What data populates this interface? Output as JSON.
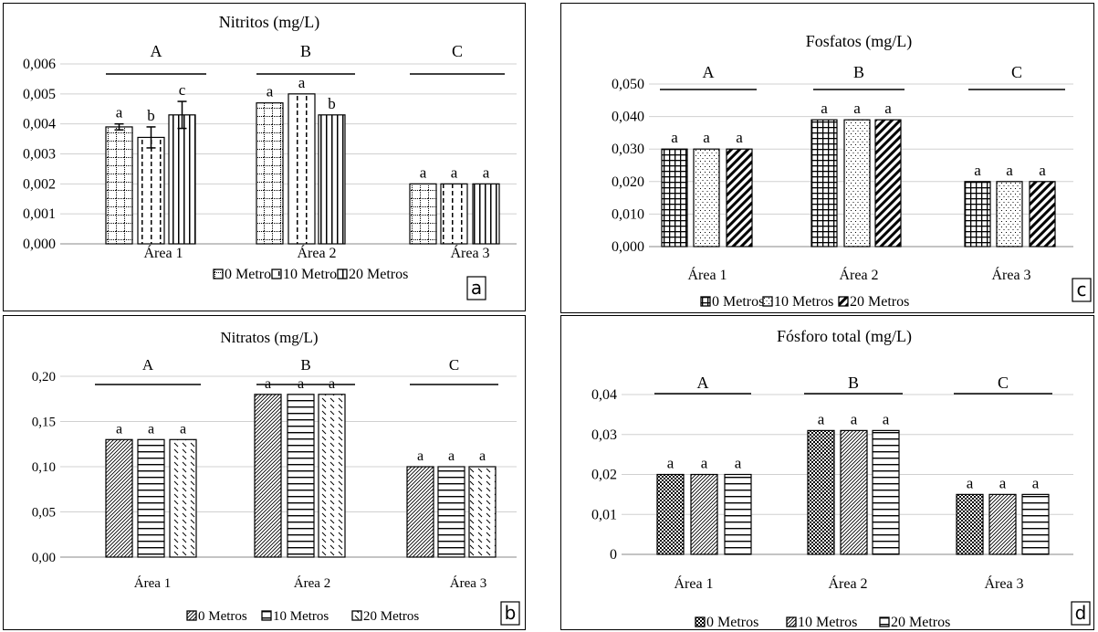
{
  "panels": [
    {
      "id": "a",
      "panel_letter": "a",
      "legend": [
        "0 Metros",
        "10 Metros",
        "20 Metros"
      ],
      "chart_data": {
        "type": "bar",
        "title": "Nitritos (mg/L)",
        "categories": [
          "Área 1",
          "Área 2",
          "Área 3"
        ],
        "group_labels": [
          "A",
          "B",
          "C"
        ],
        "series": [
          {
            "name": "0 Metros",
            "values": [
              0.0039,
              0.0047,
              0.002
            ],
            "errors": [
              0.0001,
              0,
              0
            ],
            "letters": [
              "a",
              "a",
              "a"
            ]
          },
          {
            "name": "10 Metros",
            "values": [
              0.00355,
              0.005,
              0.002
            ],
            "errors": [
              0.00035,
              0,
              0
            ],
            "letters": [
              "b",
              "a",
              "a"
            ]
          },
          {
            "name": "20 Metros",
            "values": [
              0.0043,
              0.0043,
              0.002
            ],
            "errors": [
              0.00045,
              0,
              0
            ],
            "letters": [
              "c",
              "b",
              "a"
            ]
          }
        ],
        "yticks": [
          "0,000",
          "0,001",
          "0,002",
          "0,003",
          "0,004",
          "0,005",
          "0,006"
        ],
        "ylim": [
          0,
          0.006
        ],
        "grid": true,
        "legend_position": "bottom"
      }
    },
    {
      "id": "c",
      "panel_letter": "c",
      "legend": [
        "0 Metros",
        "10 Metros",
        "20 Metros"
      ],
      "chart_data": {
        "type": "bar",
        "title": "Fosfatos (mg/L)",
        "categories": [
          "Área 1",
          "Área 2",
          "Área 3"
        ],
        "group_labels": [
          "A",
          "B",
          "C"
        ],
        "series": [
          {
            "name": "0 Metros",
            "values": [
              0.03,
              0.039,
              0.02
            ],
            "letters": [
              "a",
              "a",
              "a"
            ]
          },
          {
            "name": "10 Metros",
            "values": [
              0.03,
              0.039,
              0.02
            ],
            "letters": [
              "a",
              "a",
              "a"
            ]
          },
          {
            "name": "20 Metros",
            "values": [
              0.03,
              0.039,
              0.02
            ],
            "letters": [
              "a",
              "a",
              "a"
            ]
          }
        ],
        "yticks": [
          "0,000",
          "0,010",
          "0,020",
          "0,030",
          "0,040",
          "0,050"
        ],
        "ylim": [
          0,
          0.05
        ],
        "grid": true,
        "legend_position": "bottom"
      }
    },
    {
      "id": "b",
      "panel_letter": "b",
      "legend": [
        "0 Metros",
        "10 Metros",
        "20 Metros"
      ],
      "chart_data": {
        "type": "bar",
        "title": "Nitratos (mg/L)",
        "categories": [
          "Área 1",
          "Área 2",
          "Área 3"
        ],
        "group_labels": [
          "A",
          "B",
          "C"
        ],
        "series": [
          {
            "name": "0 Metros",
            "values": [
              0.13,
              0.18,
              0.1
            ],
            "letters": [
              "a",
              "a",
              "a"
            ]
          },
          {
            "name": "10 Metros",
            "values": [
              0.13,
              0.18,
              0.1
            ],
            "letters": [
              "a",
              "a",
              "a"
            ]
          },
          {
            "name": "20 Metros",
            "values": [
              0.13,
              0.18,
              0.1
            ],
            "letters": [
              "a",
              "a",
              "a"
            ]
          }
        ],
        "yticks": [
          "0,00",
          "0,05",
          "0,10",
          "0,15",
          "0,20"
        ],
        "ylim": [
          0,
          0.2
        ],
        "grid": true,
        "legend_position": "bottom"
      }
    },
    {
      "id": "d",
      "panel_letter": "d",
      "legend": [
        "0 Metros",
        "10 Metros",
        "20 Metros"
      ],
      "chart_data": {
        "type": "bar",
        "title": "Fósforo total (mg/L)",
        "categories": [
          "Área 1",
          "Área 2",
          "Área 3"
        ],
        "group_labels": [
          "A",
          "B",
          "C"
        ],
        "series": [
          {
            "name": "0 Metros",
            "values": [
              0.02,
              0.031,
              0.015
            ],
            "letters": [
              "a",
              "a",
              "a"
            ]
          },
          {
            "name": "10 Metros",
            "values": [
              0.02,
              0.031,
              0.015
            ],
            "letters": [
              "a",
              "a",
              "a"
            ]
          },
          {
            "name": "20 Metros",
            "values": [
              0.02,
              0.031,
              0.015
            ],
            "letters": [
              "a",
              "a",
              "a"
            ]
          }
        ],
        "yticks": [
          "0",
          "0,01",
          "0,02",
          "0,03",
          "0,04"
        ],
        "ylim": [
          0,
          0.04
        ],
        "grid": true,
        "legend_position": "bottom"
      }
    }
  ]
}
